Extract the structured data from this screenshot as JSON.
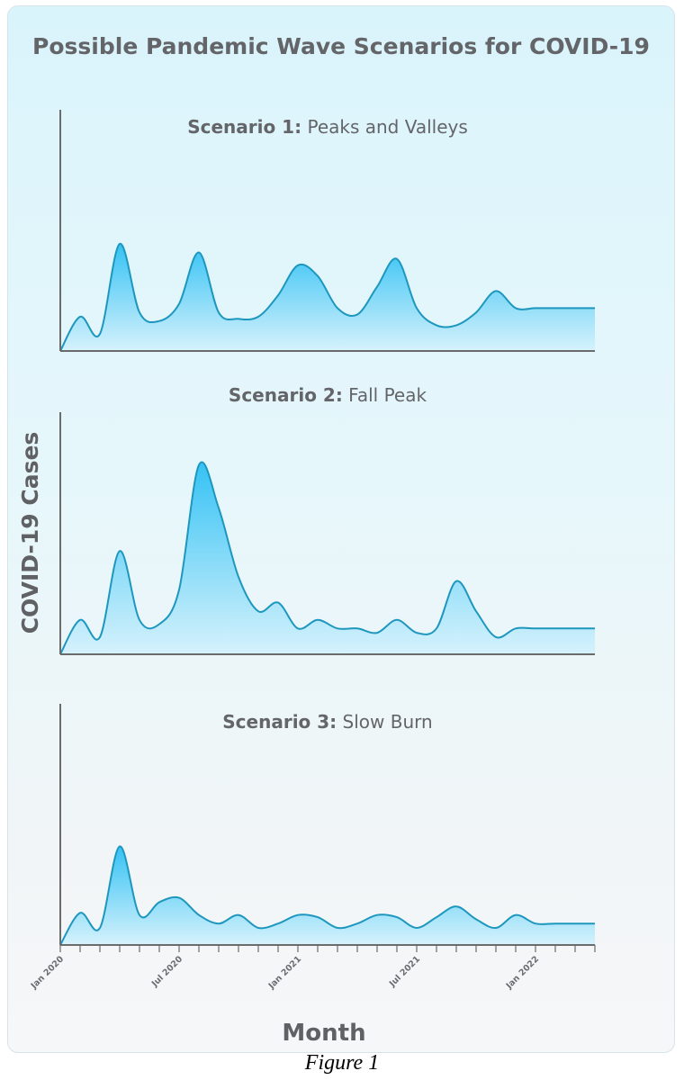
{
  "title": "Possible Pandemic Wave Scenarios for COVID-19",
  "caption": "Figure 1",
  "colors": {
    "line": "#1e97bf",
    "fill_top": "#35c2f4",
    "fill_bottom": "#d6f2fc",
    "axis": "#6b6b6b"
  },
  "chart_data": {
    "type": "area",
    "ylabel": "COVID-19 Cases",
    "xlabel": "Month",
    "x_tick_labels": [
      "Jan 2020",
      "Jul 2020",
      "Jan 2021",
      "Jul 2021",
      "Jan 2022"
    ],
    "x_range": [
      "2020-01",
      "2022-04"
    ],
    "grid": false,
    "panels": [
      {
        "title_bold": "Scenario 1:",
        "title_rest": "Peaks and Valleys",
        "x": [
          "2020-01",
          "2020-02",
          "2020-03",
          "2020-04",
          "2020-05",
          "2020-06",
          "2020-07",
          "2020-08",
          "2020-09",
          "2020-10",
          "2020-11",
          "2020-12",
          "2021-01",
          "2021-02",
          "2021-03",
          "2021-04",
          "2021-05",
          "2021-06",
          "2021-07",
          "2021-08",
          "2021-09",
          "2021-10",
          "2021-11",
          "2021-12",
          "2022-01",
          "2022-02",
          "2022-03",
          "2022-04"
        ],
        "values": [
          0,
          16,
          8,
          50,
          18,
          14,
          22,
          46,
          18,
          15,
          16,
          26,
          40,
          35,
          20,
          17,
          30,
          43,
          20,
          12,
          12,
          18,
          28,
          20,
          20,
          20,
          20,
          20
        ]
      },
      {
        "title_bold": "Scenario 2:",
        "title_rest": "Fall Peak",
        "x": [
          "2020-01",
          "2020-02",
          "2020-03",
          "2020-04",
          "2020-05",
          "2020-06",
          "2020-07",
          "2020-08",
          "2020-09",
          "2020-10",
          "2020-11",
          "2020-12",
          "2021-01",
          "2021-02",
          "2021-03",
          "2021-04",
          "2021-05",
          "2021-06",
          "2021-07",
          "2021-08",
          "2021-09",
          "2021-10",
          "2021-11",
          "2021-12",
          "2022-01",
          "2022-02",
          "2022-03",
          "2022-04"
        ],
        "values": [
          0,
          16,
          8,
          48,
          16,
          14,
          30,
          88,
          68,
          36,
          20,
          24,
          12,
          16,
          12,
          12,
          10,
          16,
          10,
          12,
          34,
          20,
          8,
          12,
          12,
          12,
          12,
          12
        ]
      },
      {
        "title_bold": "Scenario 3:",
        "title_rest": "Slow Burn",
        "x": [
          "2020-01",
          "2020-02",
          "2020-03",
          "2020-04",
          "2020-05",
          "2020-06",
          "2020-07",
          "2020-08",
          "2020-09",
          "2020-10",
          "2020-11",
          "2020-12",
          "2021-01",
          "2021-02",
          "2021-03",
          "2021-04",
          "2021-05",
          "2021-06",
          "2021-07",
          "2021-08",
          "2021-09",
          "2021-10",
          "2021-11",
          "2021-12",
          "2022-01",
          "2022-02",
          "2022-03",
          "2022-04"
        ],
        "values": [
          0,
          15,
          8,
          46,
          14,
          20,
          22,
          14,
          10,
          14,
          8,
          10,
          14,
          13,
          8,
          10,
          14,
          13,
          8,
          13,
          18,
          12,
          8,
          14,
          10,
          10,
          10,
          10
        ]
      }
    ]
  }
}
